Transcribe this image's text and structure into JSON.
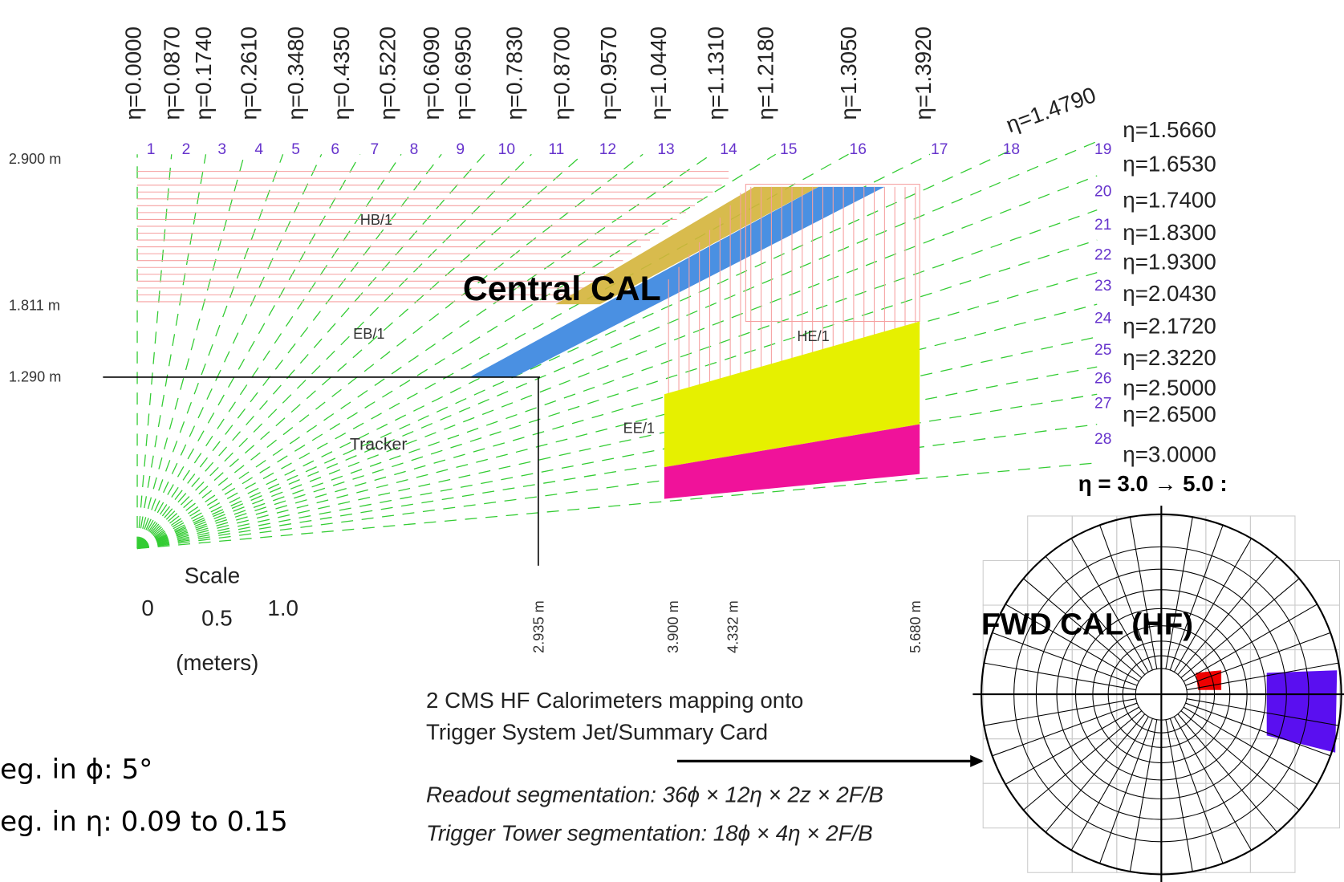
{
  "eta_top": [
    "η=0.0000",
    "η=0.0870",
    "η=0.1740",
    "η=0.2610",
    "η=0.3480",
    "η=0.4350",
    "η=0.5220",
    "η=0.6090",
    "η=0.6950",
    "η=0.7830",
    "η=0.8700",
    "η=0.9570",
    "η=1.0440",
    "η=1.1310",
    "η=1.2180",
    "η=1.3050",
    "η=1.3920"
  ],
  "eta_diagonal": "η=1.4790",
  "towers": [
    "1",
    "2",
    "3",
    "4",
    "5",
    "6",
    "7",
    "8",
    "9",
    "10",
    "11",
    "12",
    "13",
    "14",
    "15",
    "16",
    "17",
    "18",
    "19",
    "20",
    "21",
    "22",
    "23",
    "24",
    "25",
    "26",
    "27",
    "28"
  ],
  "eta_right": [
    "η=1.5660",
    "η=1.6530",
    "η=1.7400",
    "η=1.8300",
    "η=1.9300",
    "η=2.0430",
    "η=2.1720",
    "η=2.3220",
    "η=2.5000",
    "η=2.6500",
    "η=3.0000"
  ],
  "hf_range": "η = 3.0 → 5.0 :",
  "radii": [
    "2.900 m",
    "1.811 m",
    "1.290 m"
  ],
  "z_positions": [
    "2.935 m",
    "3.900 m",
    "4.332 m",
    "5.680 m"
  ],
  "regions": {
    "hb": "HB/1",
    "eb": "EB/1",
    "he": "HE/1",
    "ee": "EE/1",
    "tracker": "Tracker"
  },
  "central_label": "Central CAL",
  "forward_label": "FWD CAL (HF)",
  "scale": {
    "title": "Scale",
    "ticks": [
      "0",
      "0.5",
      "1.0"
    ],
    "unit": "(meters)"
  },
  "hf_caption": [
    "2 CMS HF Calorimeters mapping onto",
    "Trigger System Jet/Summary Card"
  ],
  "segmentation": [
    "Readout segmentation: 36ϕ × 12η × 2z × 2F/B",
    "Trigger Tower segmentation: 18ϕ × 4η × 2F/B"
  ],
  "notes": [
    "eg. in ϕ: 5°",
    "eg. in η: 0.09 to 0.15"
  ]
}
